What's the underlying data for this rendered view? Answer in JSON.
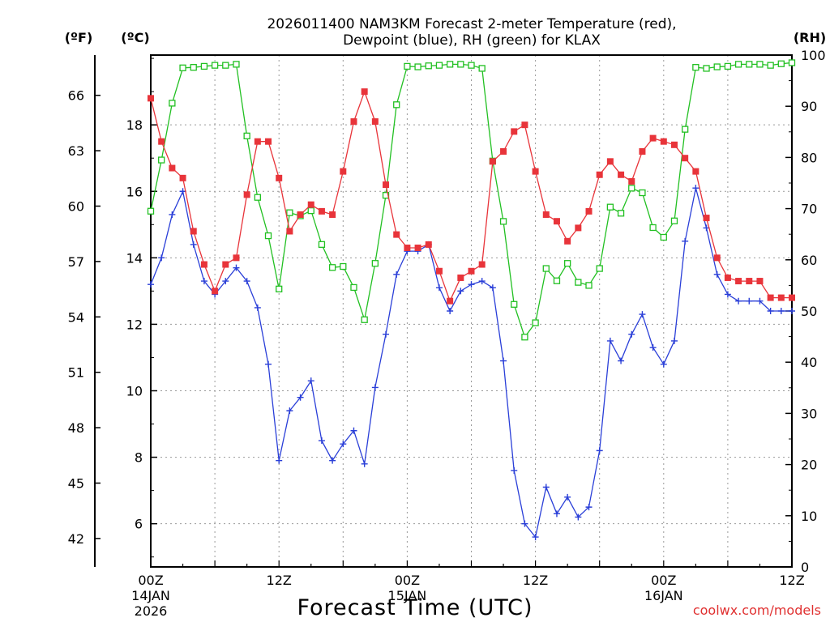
{
  "chart_data": {
    "type": "line",
    "title_line1": "2026011400 NAM3KM Forecast 2-meter Temperature (red),",
    "title_line2": "Dewpoint (blue), RH (green) for KLAX",
    "xlabel": "Forecast Time (UTC)",
    "credit": "coolwx.com/models",
    "unit_f": "(ºF)",
    "unit_c": "(ºC)",
    "unit_rh": "(RH)",
    "x_range_hours": [
      0,
      60
    ],
    "x_ticks": [
      {
        "hour": 0,
        "line1": "00Z",
        "line2": "14JAN",
        "line3": "2026"
      },
      {
        "hour": 12,
        "line1": "12Z",
        "line2": "",
        "line3": ""
      },
      {
        "hour": 24,
        "line1": "00Z",
        "line2": "15JAN",
        "line3": ""
      },
      {
        "hour": 36,
        "line1": "12Z",
        "line2": "",
        "line3": ""
      },
      {
        "hour": 48,
        "line1": "00Z",
        "line2": "16JAN",
        "line3": ""
      },
      {
        "hour": 60,
        "line1": "12Z",
        "line2": "",
        "line3": ""
      }
    ],
    "celsius_range": [
      4.7,
      20.1
    ],
    "celsius_ticks": [
      "6",
      "8",
      "10",
      "12",
      "14",
      "16",
      "18"
    ],
    "fahrenheit_ticks": [
      "42",
      "45",
      "48",
      "51",
      "54",
      "57",
      "60",
      "63",
      "66"
    ],
    "rh_range": [
      0,
      100
    ],
    "rh_ticks": [
      "0",
      "10",
      "20",
      "30",
      "40",
      "50",
      "60",
      "70",
      "80",
      "90",
      "100"
    ],
    "colors": {
      "temperature": "#e8343a",
      "dewpoint": "#2a3fd8",
      "rh": "#22c022",
      "grid": "#999999"
    },
    "series": [
      {
        "name": "Temperature (ºC)",
        "values": [
          18.8,
          17.5,
          16.7,
          16.4,
          14.8,
          13.8,
          13.0,
          13.8,
          14.0,
          15.9,
          17.5,
          17.5,
          16.4,
          14.8,
          15.3,
          15.6,
          15.4,
          15.3,
          16.6,
          18.1,
          19.0,
          18.1,
          16.2,
          14.7,
          14.3,
          14.3,
          14.4,
          13.6,
          12.7,
          13.4,
          13.6,
          13.8,
          16.9,
          17.2,
          17.8,
          18.0,
          16.6,
          15.3,
          15.1,
          14.5,
          14.9,
          15.4,
          16.5,
          16.9,
          16.5,
          16.3,
          17.2,
          17.6,
          17.5,
          17.4,
          17.0,
          16.6,
          15.2,
          14.0,
          13.4,
          13.3,
          13.3,
          13.3,
          12.8,
          12.8,
          12.8
        ]
      },
      {
        "name": "Dewpoint (ºC)",
        "values": [
          13.2,
          14.0,
          15.3,
          16.0,
          14.4,
          13.3,
          12.9,
          13.3,
          13.7,
          13.3,
          12.5,
          10.8,
          7.9,
          9.4,
          9.8,
          10.3,
          8.5,
          7.9,
          8.4,
          8.8,
          7.8,
          10.1,
          11.7,
          13.5,
          14.2,
          14.2,
          14.4,
          13.1,
          12.4,
          13.0,
          13.2,
          13.3,
          13.1,
          10.9,
          7.6,
          6.0,
          5.6,
          7.1,
          6.3,
          6.8,
          6.2,
          6.5,
          8.2,
          11.5,
          10.9,
          11.7,
          12.3,
          11.3,
          10.8,
          11.5,
          14.5,
          16.1,
          14.9,
          13.5,
          12.9,
          12.7,
          12.7,
          12.7,
          12.4,
          12.4,
          12.4
        ]
      },
      {
        "name": "RH (%)",
        "values": [
          69.5,
          79.5,
          90.6,
          97.5,
          97.6,
          97.8,
          98.0,
          98.0,
          98.2,
          84.2,
          72.2,
          64.7,
          54.3,
          69.2,
          68.6,
          69.6,
          63.0,
          58.5,
          58.7,
          54.6,
          48.3,
          59.3,
          72.6,
          90.3,
          97.8,
          97.7,
          97.9,
          98.0,
          98.2,
          98.2,
          98.0,
          97.4,
          79.3,
          67.5,
          51.3,
          44.9,
          47.7,
          58.3,
          55.9,
          59.3,
          55.6,
          55.0,
          58.3,
          70.3,
          69.1,
          74.0,
          73.1,
          66.3,
          64.4,
          67.6,
          85.5,
          97.6,
          97.4,
          97.7,
          97.8,
          98.2,
          98.2,
          98.2,
          98.0,
          98.3,
          98.5
        ]
      }
    ]
  }
}
